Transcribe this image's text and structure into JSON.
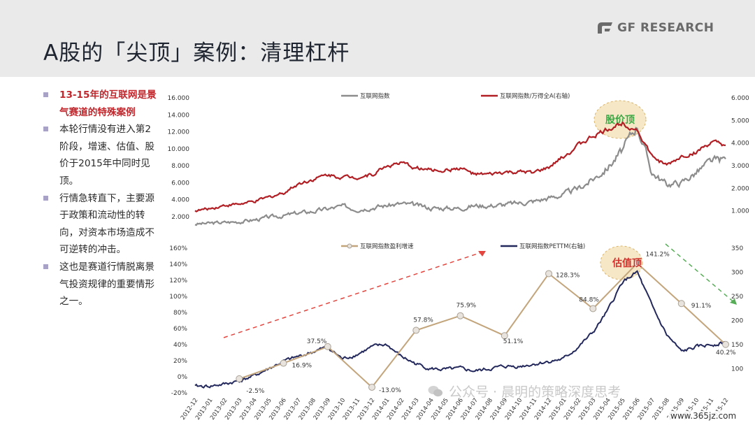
{
  "header": {
    "title": "A股的「尖顶」案例：清理杠杆",
    "logo_text": "GF RESEARCH"
  },
  "bullets": [
    {
      "text": "13-15年的互联网是景气赛道的特殊案例",
      "style": "red"
    },
    {
      "text": "本轮行情没有进入第2阶段，增速、估值、股价于2015年中同时见顶。",
      "style": "normal"
    },
    {
      "text": "行情急转直下，主要源于政策和流动性的转向，对资本市场造成不可逆转的冲击。",
      "style": "normal"
    },
    {
      "text": "这也是赛道行情脱离景气投资规律的重要情形之一。",
      "style": "normal"
    }
  ],
  "watermark": "公众号 · 晨明的策略深度思考",
  "site": "www.365jz.com",
  "colors": {
    "gray": "#8c8c8c",
    "red": "#b11f24",
    "tan": "#c3a57c",
    "navy": "#23285c",
    "dashRed": "#e2463f",
    "dashGreen": "#57ad57",
    "ellipse": "#f6e8c6"
  },
  "chart_data": [
    {
      "type": "line",
      "x_labels": [
        "2012-12",
        "2013-01",
        "2013-02",
        "2013-03",
        "2013-04",
        "2013-05",
        "2013-06",
        "2013-07",
        "2013-08",
        "2013-09",
        "2013-10",
        "2013-11",
        "2013-12",
        "2014-01",
        "2014-02",
        "2014-03",
        "2014-04",
        "2014-05",
        "2014-06",
        "2014-07",
        "2014-08",
        "2014-09",
        "2014-10",
        "2014-11",
        "2014-12",
        "2015-01",
        "2015-02",
        "2015-03",
        "2015-04",
        "2015-05",
        "2015-06",
        "2015-07",
        "2015-08",
        "2015-09",
        "2015-10",
        "2015-11",
        "2015-12"
      ],
      "y_ticks_left": [
        "2.000",
        "4.000",
        "6.000",
        "8.000",
        "10.000",
        "12.000",
        "14.000",
        "16.000"
      ],
      "y_ticks_right": [
        "1.000",
        "2.000",
        "3.000",
        "4.000",
        "5.000",
        "6.000"
      ],
      "ylim_left": [
        0,
        16
      ],
      "ylim_right": [
        0,
        6
      ],
      "series": [
        {
          "name": "互联网指数",
          "axis": "left",
          "color": "#8c8c8c",
          "values": [
            1.1,
            1.2,
            1.3,
            1.4,
            1.6,
            1.9,
            2.1,
            2.4,
            2.6,
            2.9,
            3.2,
            2.9,
            3.1,
            3.3,
            3.5,
            3.3,
            3.0,
            3.0,
            3.0,
            3.3,
            3.3,
            3.4,
            3.6,
            3.8,
            4.2,
            4.6,
            5.3,
            6.4,
            7.8,
            9.8,
            12.8,
            7.2,
            5.8,
            6.0,
            7.2,
            8.5,
            8.8
          ]
        },
        {
          "name": "互联网指数/万得全A(右轴)",
          "axis": "right",
          "color": "#b11f24",
          "values": [
            1.0,
            1.1,
            1.25,
            1.3,
            1.4,
            1.6,
            1.8,
            2.2,
            2.4,
            2.6,
            2.5,
            2.5,
            2.6,
            3.0,
            3.1,
            2.9,
            2.8,
            2.8,
            2.9,
            2.6,
            2.6,
            2.7,
            2.7,
            2.7,
            2.9,
            3.4,
            3.9,
            4.3,
            4.6,
            4.9,
            4.6,
            3.4,
            3.0,
            3.4,
            3.6,
            4.0,
            3.9
          ]
        }
      ],
      "annotations": [
        {
          "text": "股价顶"
        }
      ]
    },
    {
      "type": "line",
      "y_ticks_left": [
        "-20%",
        "0%",
        "20%",
        "40%",
        "60%",
        "80%",
        "100%",
        "120%",
        "140%",
        "160%"
      ],
      "y_ticks_right": [
        "100",
        "150",
        "200",
        "250",
        "300",
        "350"
      ],
      "ylim_left": [
        -20,
        160
      ],
      "ylim_right": [
        50,
        350
      ],
      "series": [
        {
          "name": "互联网指数盈利增速",
          "axis": "left",
          "color": "#c3a57c",
          "x": [
            "2013-03",
            "2013-06",
            "2013-09",
            "2013-12",
            "2014-03",
            "2014-06",
            "2014-09",
            "2014-12",
            "2015-03",
            "2015-06",
            "2015-09",
            "2015-12"
          ],
          "values": [
            -2.5,
            16.9,
            37.5,
            -13.0,
            57.8,
            75.9,
            51.1,
            128.3,
            84.8,
            141.2,
            91.1,
            40.2
          ],
          "labels": [
            "-2.5%",
            "16.9%",
            "37.5%",
            "-13.0%",
            "57.8%",
            "75.9%",
            "51.1%",
            "128.3%",
            "84.8%",
            "141.2%",
            "91.1%",
            "40.2%"
          ]
        },
        {
          "name": "互联网指数PETTM(右轴)",
          "axis": "right",
          "color": "#23285c",
          "values": [
            63,
            64,
            68,
            75,
            85,
            100,
            115,
            125,
            135,
            145,
            120,
            130,
            145,
            150,
            125,
            110,
            100,
            98,
            100,
            95,
            100,
            105,
            105,
            110,
            115,
            120,
            145,
            175,
            220,
            280,
            300,
            230,
            170,
            135,
            145,
            150,
            155
          ]
        }
      ],
      "annotations": [
        {
          "text": "估值顶"
        }
      ]
    }
  ]
}
